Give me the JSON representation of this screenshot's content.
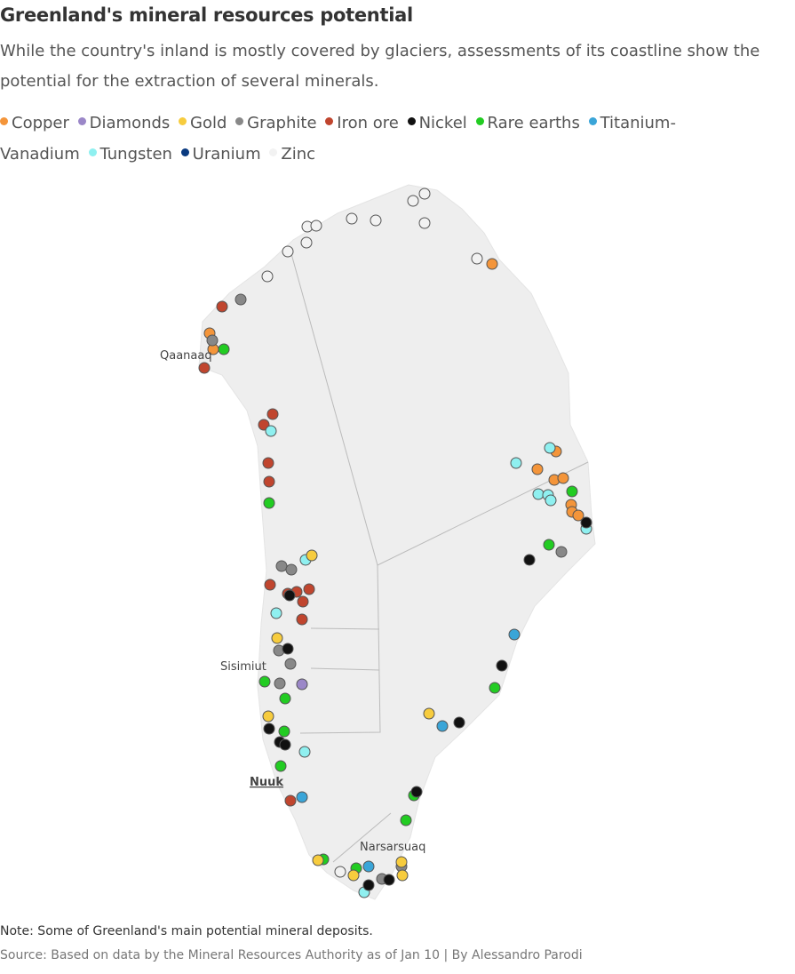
{
  "title": "Greenland's mineral resources potential",
  "subtitle": "While the country's inland is mostly covered by glaciers, assessments of its coastline show the potential for the extraction of several minerals.",
  "legend": [
    {
      "name": "Copper",
      "color": "#f4953a"
    },
    {
      "name": "Diamonds",
      "color": "#9b87c8"
    },
    {
      "name": "Gold",
      "color": "#f7cc3e"
    },
    {
      "name": "Graphite",
      "color": "#888888"
    },
    {
      "name": "Iron ore",
      "color": "#c0452e"
    },
    {
      "name": "Nickel",
      "color": "#111111"
    },
    {
      "name": "Rare earths",
      "color": "#22cc22"
    },
    {
      "name": "Titanium-Vanadium",
      "color": "#3aa5d8"
    },
    {
      "name": "Tungsten",
      "color": "#8ff0f0"
    },
    {
      "name": "Uranium",
      "color": "#0a3a80"
    },
    {
      "name": "Zinc",
      "color": "#f2f2f2"
    }
  ],
  "places": [
    "Qaanaaq",
    "Sisimiut",
    "Nuuk",
    "Narsarsuaq"
  ],
  "note": "Note: Some of Greenland's main potential mineral deposits.",
  "source": "Source: Based on data by the Mineral Resources Authority as of Jan 10 | By Alessandro Parodi"
}
